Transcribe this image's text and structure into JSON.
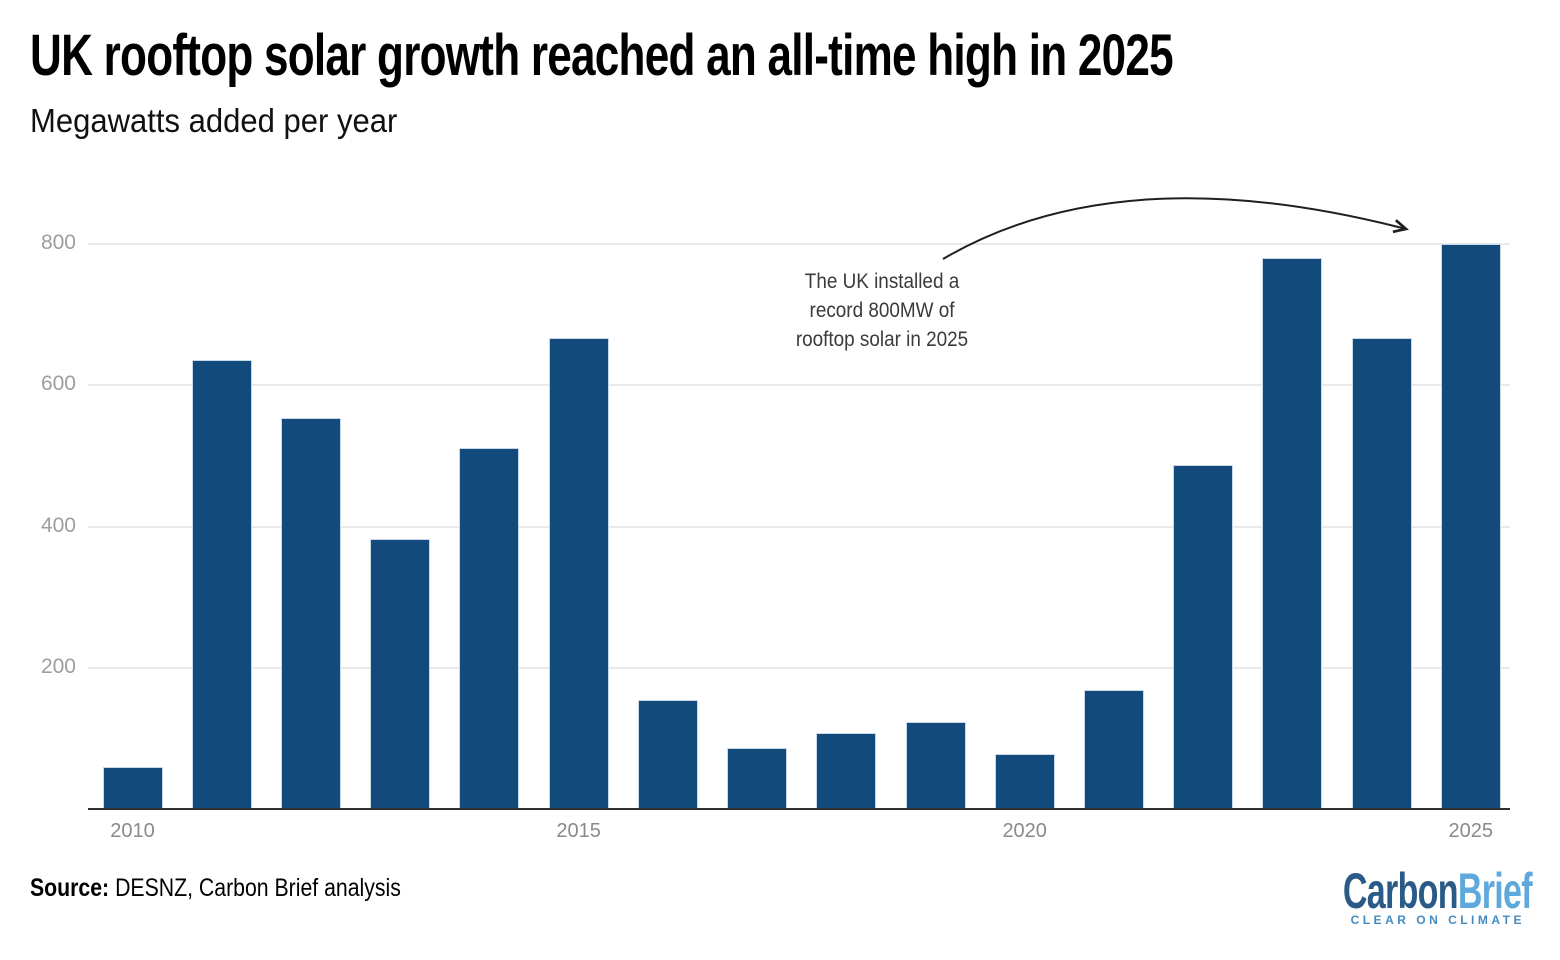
{
  "chart_data": {
    "type": "bar",
    "title": "UK rooftop solar growth reached an all-time high in 2025",
    "subtitle": "Megawatts added per year",
    "categories": [
      "2010",
      "2011",
      "2012",
      "2013",
      "2014",
      "2015",
      "2016",
      "2017",
      "2018",
      "2019",
      "2020",
      "2021",
      "2022",
      "2023",
      "2024",
      "2025"
    ],
    "values": [
      60,
      636,
      553,
      383,
      511,
      667,
      154,
      86,
      108,
      123,
      78,
      168,
      487,
      780,
      667,
      800
    ],
    "xlabel": "",
    "ylabel": "Megawatts added per year",
    "ylim": [
      0,
      870
    ],
    "yticks": [
      200,
      400,
      600,
      800
    ],
    "xticks": [
      "2010",
      "2015",
      "2020",
      "2025"
    ],
    "grid": "horizontal",
    "legend": "none",
    "annotation": {
      "lines": [
        "The UK installed a",
        "record 800MW of",
        "rooftop solar in 2025"
      ],
      "arrow_target": "2025 bar"
    }
  },
  "footer": {
    "source_label": "Source:",
    "source_text": "DESNZ, Carbon Brief analysis"
  },
  "logo": {
    "wordmark_part1": "Carbon",
    "wordmark_part2": "Brief",
    "tagline": "CLEAR ON CLIMATE"
  },
  "colors": {
    "bar": "#114a7b",
    "bar_border": "#c9d8e6",
    "gridline": "#e9e9e9",
    "axis_line": "#2f2f2f",
    "ytick": "#9e9e9e",
    "xtick": "#8a8a8a",
    "annotation": "#3b3b3b",
    "arrow": "#1f1f1f",
    "title": "#000000",
    "logo_carbon": "#2a5b88",
    "logo_brief": "#5fa8db",
    "logo_tagline": "#458bc0"
  }
}
